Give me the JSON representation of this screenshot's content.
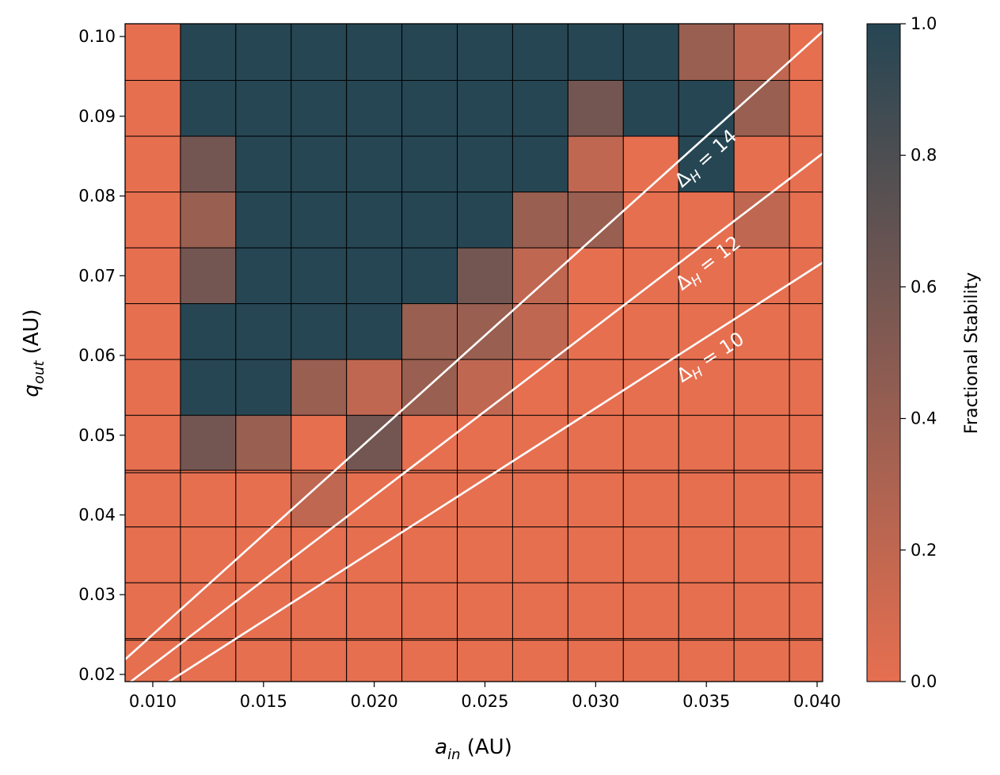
{
  "chart_data": {
    "type": "heatmap",
    "xlabel": {
      "var": "a",
      "sub": "in",
      "unit": " (AU)"
    },
    "ylabel": {
      "var": "q",
      "sub": "out",
      "unit": " (AU)"
    },
    "colorbar_label": "Fractional Stability",
    "colorbar_ticks": [
      "0.0",
      "0.2",
      "0.4",
      "0.6",
      "0.8",
      "1.0"
    ],
    "colorbar_range": [
      0,
      1
    ],
    "colormap": [
      "#E66F50",
      "#264653"
    ],
    "xlim": [
      0.00875,
      0.04025
    ],
    "ylim": [
      0.0191,
      0.1016
    ],
    "x_ticks": [
      {
        "value": 0.01,
        "label": "0.010"
      },
      {
        "value": 0.015,
        "label": "0.015"
      },
      {
        "value": 0.02,
        "label": "0.020"
      },
      {
        "value": 0.025,
        "label": "0.025"
      },
      {
        "value": 0.03,
        "label": "0.030"
      },
      {
        "value": 0.035,
        "label": "0.035"
      },
      {
        "value": 0.04,
        "label": "0.040"
      }
    ],
    "y_ticks": [
      {
        "value": 0.02,
        "label": "0.02"
      },
      {
        "value": 0.03,
        "label": "0.03"
      },
      {
        "value": 0.04,
        "label": "0.04"
      },
      {
        "value": 0.05,
        "label": "0.05"
      },
      {
        "value": 0.06,
        "label": "0.06"
      },
      {
        "value": 0.07,
        "label": "0.07"
      },
      {
        "value": 0.08,
        "label": "0.08"
      },
      {
        "value": 0.09,
        "label": "0.09"
      },
      {
        "value": 0.1,
        "label": "0.10"
      }
    ],
    "x_edges": [
      0.00875,
      0.01125,
      0.01375,
      0.01625,
      0.01875,
      0.02125,
      0.02375,
      0.02625,
      0.02875,
      0.03125,
      0.03375,
      0.03625,
      0.03875,
      0.04025
    ],
    "y_edges": [
      0.0191,
      0.0243,
      0.0245,
      0.0315,
      0.0385,
      0.0453,
      0.0456,
      0.0525,
      0.0595,
      0.0665,
      0.0735,
      0.0805,
      0.0875,
      0.0945,
      0.1016
    ],
    "values": [
      [
        0,
        0,
        0,
        0,
        0,
        0,
        0,
        0,
        0,
        0,
        0,
        0,
        0
      ],
      [
        0,
        0,
        0,
        0,
        0,
        0,
        0,
        0,
        0,
        0,
        0,
        0,
        0
      ],
      [
        0,
        0,
        0,
        0,
        0,
        0,
        0,
        0,
        0,
        0,
        0,
        0,
        0
      ],
      [
        0,
        0,
        0,
        0,
        0,
        0,
        0,
        0,
        0,
        0,
        0,
        0,
        0
      ],
      [
        0,
        0,
        0,
        0.2,
        0,
        0,
        0,
        0,
        0,
        0,
        0,
        0,
        0
      ],
      [
        0,
        0,
        0,
        0,
        0,
        0,
        0,
        0,
        0,
        0,
        0,
        0,
        0
      ],
      [
        0,
        0.6,
        0.4,
        0,
        0.6,
        0,
        0,
        0,
        0,
        0,
        0,
        0,
        0
      ],
      [
        0,
        1,
        1,
        0.4,
        0.2,
        0.4,
        0.2,
        0,
        0,
        0,
        0,
        0,
        0
      ],
      [
        0,
        1,
        1,
        1,
        1,
        0.4,
        0.4,
        0.2,
        0,
        0,
        0,
        0,
        0
      ],
      [
        0,
        0.6,
        1,
        1,
        1,
        1,
        0.6,
        0.2,
        0,
        0,
        0,
        0,
        0
      ],
      [
        0,
        0.4,
        1,
        1,
        1,
        1,
        1,
        0.4,
        0.4,
        0,
        0,
        0.2,
        0
      ],
      [
        0,
        0.6,
        1,
        1,
        1,
        1,
        1,
        1,
        0.2,
        0,
        1,
        0,
        0
      ],
      [
        0,
        1,
        1,
        1,
        1,
        1,
        1,
        1,
        0.6,
        1,
        1,
        0.4,
        0
      ],
      [
        0,
        1,
        1,
        1,
        1,
        1,
        1,
        1,
        1,
        1,
        0.4,
        0.2,
        0
      ]
    ],
    "lines": [
      {
        "label": {
          "var": "Δ",
          "sub": "H",
          "rest": " = 14"
        },
        "slope": 2.5,
        "color": "#ffffff"
      },
      {
        "label": {
          "var": "Δ",
          "sub": "H",
          "rest": " = 12"
        },
        "slope": 2.12,
        "color": "#ffffff"
      },
      {
        "label": {
          "var": "Δ",
          "sub": "H",
          "rest": " = 10"
        },
        "slope": 1.78,
        "color": "#ffffff"
      }
    ]
  }
}
